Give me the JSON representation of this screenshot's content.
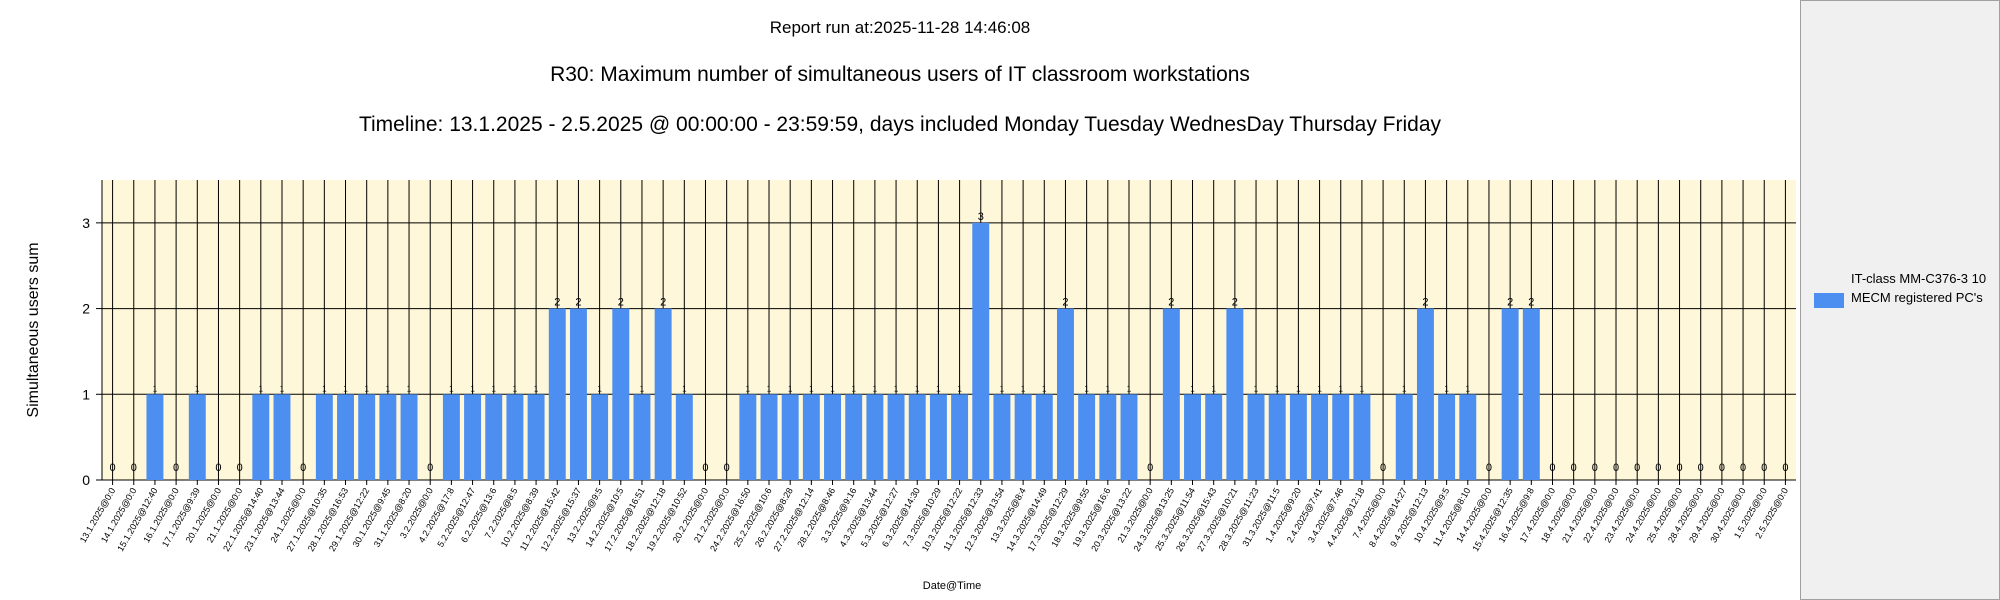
{
  "header": {
    "run_at": "Report run at:2025-11-28 14:46:08",
    "title": "R30: Maximum number of simultaneous users of IT classroom workstations",
    "subtitle": "Timeline: 13.1.2025  - 2.5.2025  @  00:00:00 -  23:59:59, days included Monday Tuesday WednesDay Thursday Friday"
  },
  "legend": {
    "label": "IT-class MM-C376-3 10 MECM registered PC's"
  },
  "colors": {
    "bar": "#4c8ff0",
    "plot_background": "#fef7d9",
    "legend_panel": "#f0f0f0"
  },
  "chart_data": {
    "type": "bar",
    "xlabel": "Date@Time",
    "ylabel": "Simultaneous users sum",
    "ylim": [
      0,
      3.5
    ],
    "yticks": [
      0,
      1,
      2,
      3
    ],
    "grid": "on",
    "legend_position": "right",
    "categories": [
      "13.1.2025@0:0",
      "14.1.2025@0:0",
      "15.1.2025@12:40",
      "16.1.2025@0:0",
      "17.1.2025@9:39",
      "20.1.2025@0:0",
      "21.1.2025@0:0",
      "22.1.2025@14:40",
      "23.1.2025@13:44",
      "24.1.2025@0:0",
      "27.1.2025@10:35",
      "28.1.2025@16:53",
      "29.1.2025@12:22",
      "30.1.2025@9:45",
      "31.1.2025@8:20",
      "3.2.2025@0:0",
      "4.2.2025@17:8",
      "5.2.2025@12:47",
      "6.2.2025@13:6",
      "7.2.2025@8:5",
      "10.2.2025@8:39",
      "11.2.2025@15:42",
      "12.2.2025@15:37",
      "13.2.2025@9:5",
      "14.2.2025@10:5",
      "17.2.2025@16:51",
      "18.2.2025@12:18",
      "19.2.2025@10:52",
      "20.2.2025@0:0",
      "21.2.2025@0:0",
      "24.2.2025@16:50",
      "25.2.2025@10:6",
      "26.2.2025@8:28",
      "27.2.2025@12:14",
      "28.2.2025@8:46",
      "3.3.2025@9:16",
      "4.3.2025@13:44",
      "5.3.2025@12:27",
      "6.3.2025@14:30",
      "7.3.2025@10:29",
      "10.3.2025@12:22",
      "11.3.2025@12:33",
      "12.3.2025@13:54",
      "13.3.2025@8:4",
      "14.3.2025@14:49",
      "17.3.2025@12:29",
      "18.3.2025@9:55",
      "19.3.2025@16:6",
      "20.3.2025@13:22",
      "21.3.2025@0:0",
      "24.3.2025@13:25",
      "25.3.2025@11:54",
      "26.3.2025@15:43",
      "27.3.2025@10:21",
      "28.3.2025@11:23",
      "31.3.2025@11:5",
      "1.4.2025@9:20",
      "2.4.2025@7:41",
      "3.4.2025@7:46",
      "4.4.2025@12:18",
      "7.4.2025@0:0",
      "8.4.2025@14:27",
      "9.4.2025@12:13",
      "10.4.2025@9:5",
      "11.4.2025@8:10",
      "14.4.2025@0:0",
      "15.4.2025@12:35",
      "16.4.2025@9:8",
      "17.4.2025@0:0",
      "18.4.2025@0:0",
      "21.4.2025@0:0",
      "22.4.2025@0:0",
      "23.4.2025@0:0",
      "24.4.2025@0:0",
      "25.4.2025@0:0",
      "28.4.2025@0:0",
      "29.4.2025@0:0",
      "30.4.2025@0:0",
      "1.5.2025@0:0",
      "2.5.2025@0:0"
    ],
    "series": [
      {
        "name": "IT-class MM-C376-3 10 MECM registered PC's",
        "values": [
          0,
          0,
          1,
          0,
          1,
          0,
          0,
          1,
          1,
          0,
          1,
          1,
          1,
          1,
          1,
          0,
          1,
          1,
          1,
          1,
          1,
          2,
          2,
          1,
          2,
          1,
          2,
          1,
          0,
          0,
          1,
          1,
          1,
          1,
          1,
          1,
          1,
          1,
          1,
          1,
          1,
          3,
          1,
          1,
          1,
          2,
          1,
          1,
          1,
          0,
          2,
          1,
          1,
          2,
          1,
          1,
          1,
          1,
          1,
          1,
          0,
          1,
          2,
          1,
          1,
          0,
          2,
          2,
          0,
          0,
          0,
          0,
          0,
          0,
          0,
          0,
          0,
          0,
          0,
          0
        ]
      }
    ]
  }
}
